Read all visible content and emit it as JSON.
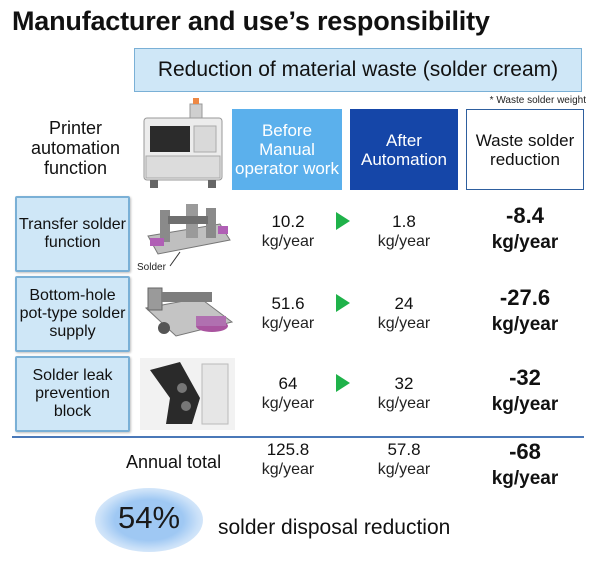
{
  "title": "Manufacturer and use’s responsibility",
  "subtitle": "Reduction of material waste (solder cream)",
  "note": "* Waste solder weight",
  "header": {
    "left": "Printer automation function",
    "before": "Before Manual operator work",
    "after": "After Automation",
    "waste": "Waste solder reduction"
  },
  "rows": [
    {
      "label": "Transfer solder function",
      "before": "10.2",
      "after": "1.8",
      "reduction": "-8.4",
      "unit": "kg/year"
    },
    {
      "label": "Bottom-hole pot-type solder supply",
      "before": "51.6",
      "after": "24",
      "reduction": "-27.6",
      "unit": "kg/year"
    },
    {
      "label": "Solder leak prevention block",
      "before": "64",
      "after": "32",
      "reduction": "-32",
      "unit": "kg/year"
    }
  ],
  "total": {
    "label": "Annual total",
    "before": "125.8",
    "after": "57.8",
    "reduction": "-68",
    "unit": "kg/year"
  },
  "solder_tag": "Solder",
  "summary": {
    "percent": "54%",
    "label": "solder disposal reduction"
  },
  "colors": {
    "before_fill": "#5bb0ec",
    "after_fill": "#1546a8",
    "arrow": "#1fb24a",
    "light_box": "#cfe7f7"
  }
}
